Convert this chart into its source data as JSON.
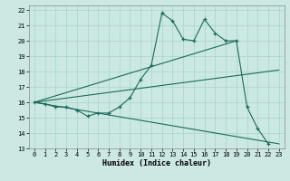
{
  "xlabel": "Humidex (Indice chaleur)",
  "bg_color": "#cce8e2",
  "grid_color": "#a8d4cc",
  "line_color": "#1a6b5a",
  "xlim": [
    -0.5,
    23.5
  ],
  "ylim": [
    13,
    22.3
  ],
  "yticks": [
    13,
    14,
    15,
    16,
    17,
    18,
    19,
    20,
    21,
    22
  ],
  "xticks": [
    0,
    1,
    2,
    3,
    4,
    5,
    6,
    7,
    8,
    9,
    10,
    11,
    12,
    13,
    14,
    15,
    16,
    17,
    18,
    19,
    20,
    21,
    22,
    23
  ],
  "series1_x": [
    0,
    1,
    2,
    3,
    4,
    5,
    6,
    7,
    8,
    9,
    10,
    11,
    12,
    13,
    14,
    15,
    16,
    17,
    18,
    19,
    20,
    21,
    22
  ],
  "series1_y": [
    16.0,
    15.9,
    15.7,
    15.7,
    15.5,
    15.1,
    15.3,
    15.3,
    15.7,
    16.3,
    17.5,
    18.4,
    21.8,
    21.3,
    20.1,
    20.0,
    21.4,
    20.5,
    20.0,
    20.0,
    15.7,
    14.3,
    13.3
  ],
  "line2_x": [
    0,
    19
  ],
  "line2_y": [
    16.0,
    20.0
  ],
  "line3_x": [
    0,
    23
  ],
  "line3_y": [
    16.0,
    18.1
  ],
  "line4_x": [
    0,
    23
  ],
  "line4_y": [
    16.0,
    13.3
  ]
}
